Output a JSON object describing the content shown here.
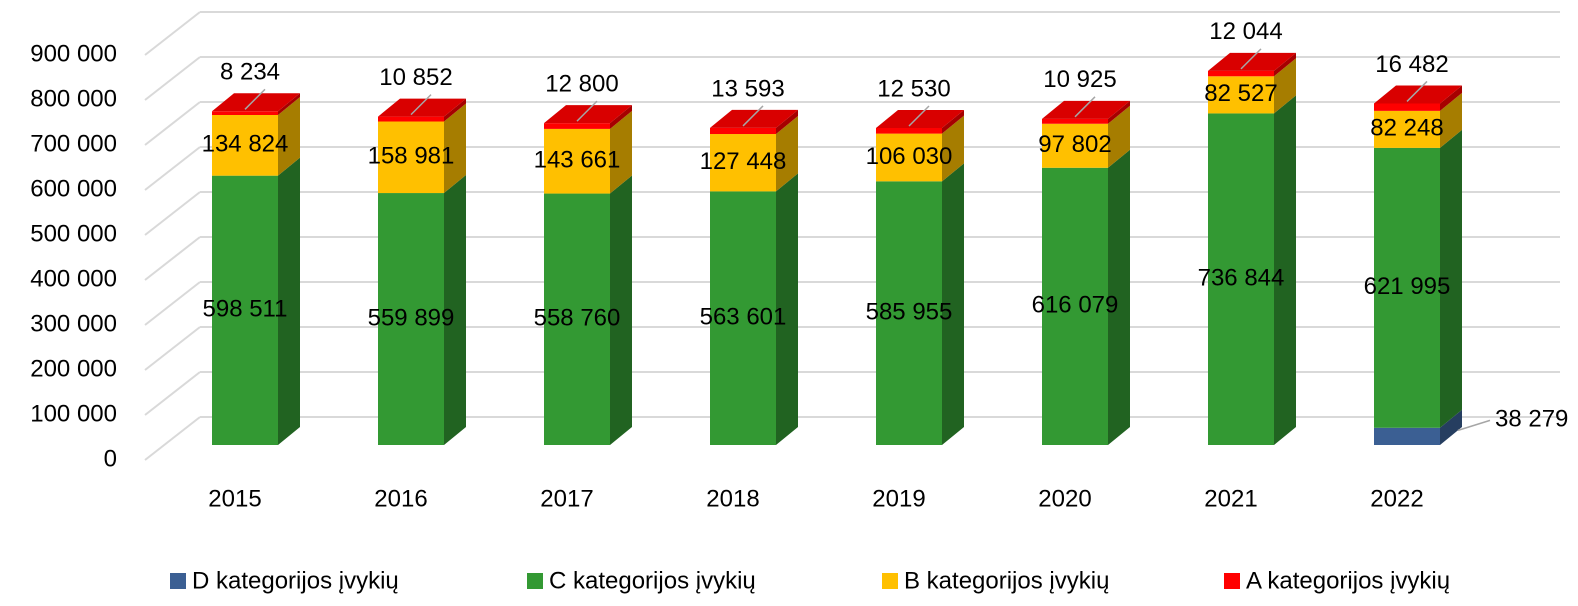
{
  "chart_data": {
    "type": "bar3d_stacked",
    "categories": [
      "2015",
      "2016",
      "2017",
      "2018",
      "2019",
      "2020",
      "2021",
      "2022"
    ],
    "series": [
      {
        "name": "D kategorijos įvykių",
        "color": "#3b5f93",
        "values": [
          null,
          null,
          null,
          null,
          null,
          null,
          null,
          38279
        ],
        "value_labels": [
          null,
          null,
          null,
          null,
          null,
          null,
          null,
          "38 279"
        ]
      },
      {
        "name": "C kategorijos įvykių",
        "color": "#339933",
        "values": [
          598511,
          559899,
          558760,
          563601,
          585955,
          616079,
          736844,
          621995
        ],
        "value_labels": [
          "598 511",
          "559 899",
          "558 760",
          "563 601",
          "585 955",
          "616 079",
          "736 844",
          "621 995"
        ]
      },
      {
        "name": "B kategorijos įvykių",
        "color": "#ffc000",
        "values": [
          134824,
          158981,
          143661,
          127448,
          106030,
          97802,
          82527,
          82248
        ],
        "value_labels": [
          "134 824",
          "158 981",
          "143 661",
          "127 448",
          "106 030",
          "97 802",
          "82 527",
          "82 248"
        ]
      },
      {
        "name": "A kategorijos įvykių",
        "color": "#ff0000",
        "values": [
          8234,
          10852,
          12800,
          13593,
          12530,
          10925,
          12044,
          16482
        ],
        "value_labels": [
          "8 234",
          "10 852",
          "12 800",
          "13 593",
          "12 530",
          "10 925",
          "12 044",
          "16 482"
        ]
      }
    ],
    "ylim": [
      0,
      900000
    ],
    "yticks": [
      0,
      {
        "value": 100000,
        "label": "100 000"
      },
      {
        "value": 200000,
        "label": "200 000"
      },
      {
        "value": 300000,
        "label": "300 000"
      },
      {
        "value": 400000,
        "label": "400 000"
      },
      {
        "value": 500000,
        "label": "500 000"
      },
      {
        "value": 600000,
        "label": "600 000"
      },
      {
        "value": 700000,
        "label": "700 000"
      },
      {
        "value": 800000,
        "label": "800 000"
      },
      {
        "value": 900000,
        "label": "900 000"
      }
    ],
    "grid": true,
    "legend": "bottom"
  }
}
